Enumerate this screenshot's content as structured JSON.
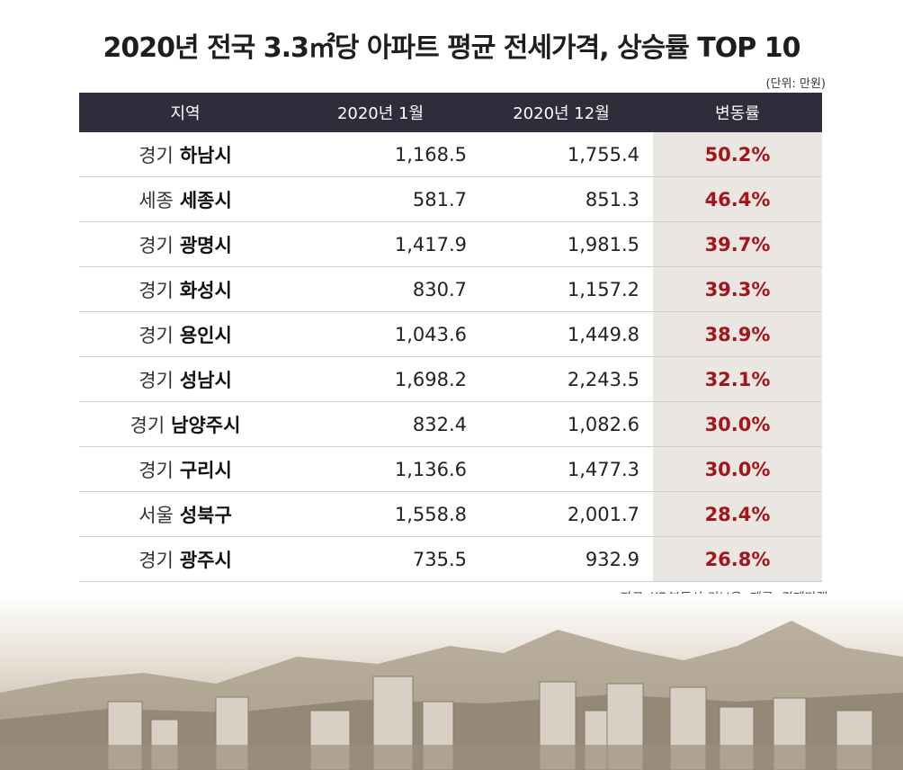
{
  "title": "2020년 전국 3.3㎡당 아파트 평균 전세가격, 상승률 TOP 10",
  "unit_note": "(단위: 만원)",
  "source": "자료: KB부동산 리브온, 제공: 경제만랩",
  "colors": {
    "header_bg": "#2d2d3b",
    "rate_text": "#a4141b",
    "rate_bg": "#eae6e1"
  },
  "chart_data": {
    "type": "table",
    "columns": [
      "지역",
      "2020년 1월",
      "2020년 12월",
      "변동률"
    ],
    "rows": [
      {
        "prov": "경기",
        "city": "하남시",
        "jan": "1,168.5",
        "dec": "1,755.4",
        "rate": "50.2%"
      },
      {
        "prov": "세종",
        "city": "세종시",
        "jan": "581.7",
        "dec": "851.3",
        "rate": "46.4%"
      },
      {
        "prov": "경기",
        "city": "광명시",
        "jan": "1,417.9",
        "dec": "1,981.5",
        "rate": "39.7%"
      },
      {
        "prov": "경기",
        "city": "화성시",
        "jan": "830.7",
        "dec": "1,157.2",
        "rate": "39.3%"
      },
      {
        "prov": "경기",
        "city": "용인시",
        "jan": "1,043.6",
        "dec": "1,449.8",
        "rate": "38.9%"
      },
      {
        "prov": "경기",
        "city": "성남시",
        "jan": "1,698.2",
        "dec": "2,243.5",
        "rate": "32.1%"
      },
      {
        "prov": "경기",
        "city": "남양주시",
        "jan": "832.4",
        "dec": "1,082.6",
        "rate": "30.0%"
      },
      {
        "prov": "경기",
        "city": "구리시",
        "jan": "1,136.6",
        "dec": "1,477.3",
        "rate": "30.0%"
      },
      {
        "prov": "서울",
        "city": "성북구",
        "jan": "1,558.8",
        "dec": "2,001.7",
        "rate": "28.4%"
      },
      {
        "prov": "경기",
        "city": "광주시",
        "jan": "735.5",
        "dec": "932.9",
        "rate": "26.8%"
      }
    ]
  }
}
